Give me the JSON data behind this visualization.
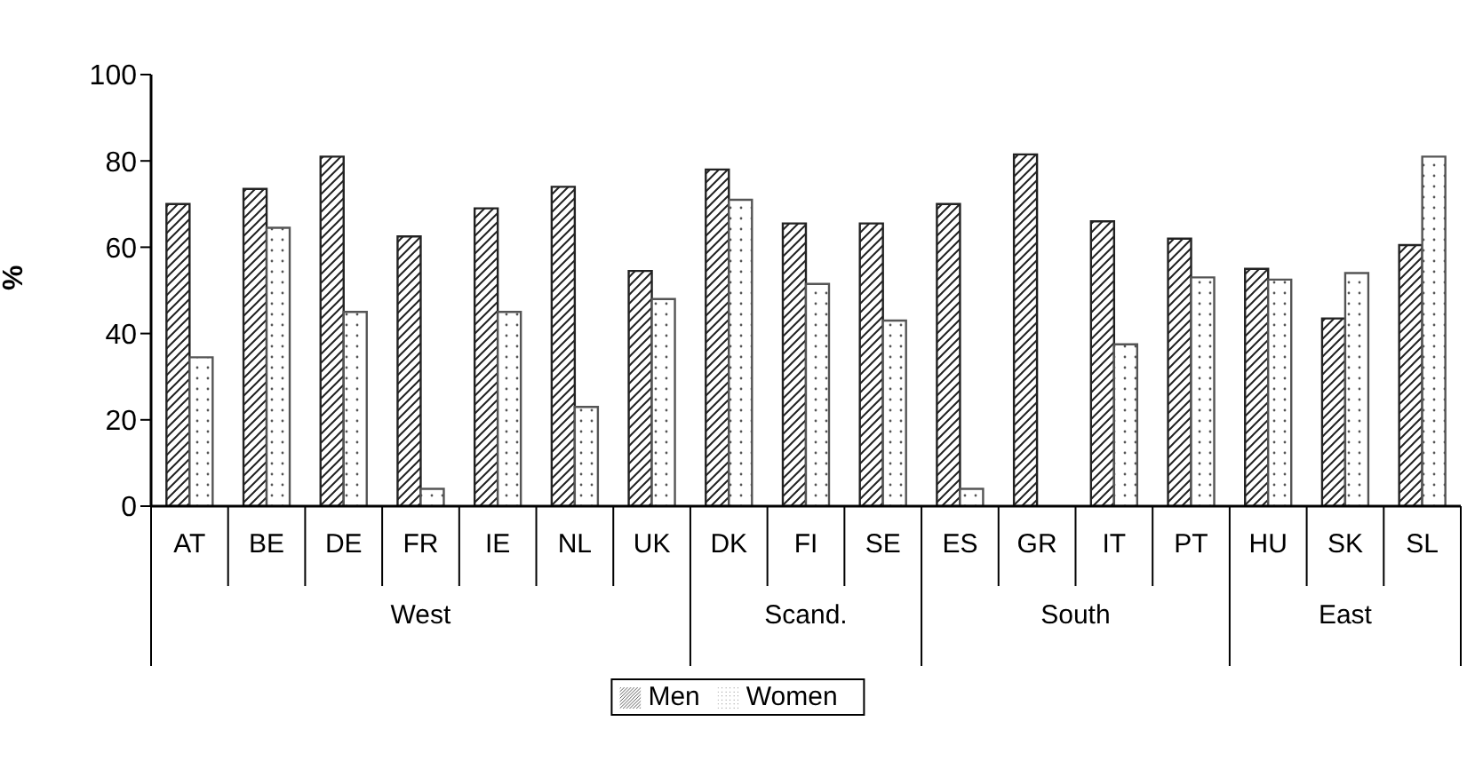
{
  "chart_data": {
    "type": "bar",
    "ylabel": "%",
    "categories": [
      "AT",
      "BE",
      "DE",
      "FR",
      "IE",
      "NL",
      "UK",
      "DK",
      "FI",
      "SE",
      "ES",
      "GR",
      "IT",
      "PT",
      "HU",
      "SK",
      "SL"
    ],
    "series": [
      {
        "name": "Men",
        "color": "#222222",
        "values": [
          70,
          73.5,
          81,
          62.5,
          69,
          74,
          54.5,
          78,
          65.5,
          65.5,
          70,
          81.5,
          66,
          62,
          55,
          43.5,
          60.5
        ]
      },
      {
        "name": "Women",
        "color": "#555555",
        "values": [
          34.5,
          64.5,
          45,
          4,
          45,
          23,
          48,
          71,
          51.5,
          43,
          4,
          null,
          37.5,
          53,
          52.5,
          54,
          81
        ]
      }
    ],
    "ylim": [
      0,
      100
    ],
    "yticks": [
      0,
      20,
      40,
      60,
      80,
      100
    ],
    "grid": false,
    "legend": "bottom",
    "annotations": [
      "West",
      "Scand.",
      "South",
      "East"
    ]
  }
}
